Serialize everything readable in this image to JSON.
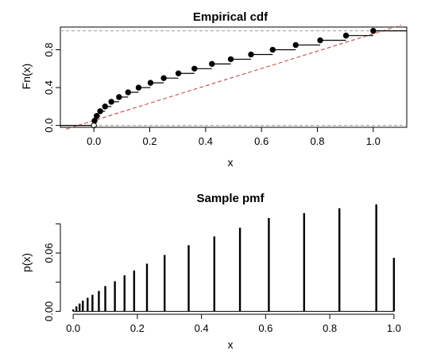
{
  "chart_data": [
    {
      "type": "line",
      "subtype": "step-ecdf",
      "title": "Empirical cdf",
      "xlabel": "x",
      "ylabel": "Fn(x)",
      "xlim": [
        -0.12,
        1.12
      ],
      "ylim": [
        -0.02,
        1.04
      ],
      "x_ticks": [
        "0.0",
        "0.2",
        "0.4",
        "0.6",
        "0.8",
        "1.0"
      ],
      "y_ticks": [
        "0.0",
        "0.4",
        "0.8"
      ],
      "x_tick_values": [
        0,
        0.2,
        0.4,
        0.6,
        0.8,
        1.0
      ],
      "y_tick_values": [
        0,
        0.4,
        0.8
      ],
      "reference_lines": [
        0,
        1
      ],
      "diagonal_reference": {
        "from": [
          -0.1,
          -0.04
        ],
        "to": [
          1.1,
          1.06
        ],
        "color": "#c0504d",
        "style": "dashed"
      },
      "series": [
        {
          "x": [
            0.0,
            0.0025,
            0.01,
            0.0225,
            0.04,
            0.0625,
            0.09,
            0.1225,
            0.16,
            0.2025,
            0.25,
            0.3025,
            0.36,
            0.4225,
            0.49,
            0.5625,
            0.64,
            0.7225,
            0.81,
            0.9025,
            1.0
          ],
          "y": [
            0.0,
            0.05,
            0.1,
            0.15,
            0.2,
            0.25,
            0.3,
            0.35,
            0.4,
            0.45,
            0.5,
            0.55,
            0.6,
            0.65,
            0.7,
            0.75,
            0.8,
            0.85,
            0.9,
            0.95,
            1.0
          ]
        }
      ],
      "grid": false
    },
    {
      "type": "bar",
      "subtype": "spike",
      "title": "Sample pmf",
      "xlabel": "x",
      "ylabel": "p(x)",
      "xlim": [
        -0.04,
        1.04
      ],
      "ylim": [
        -0.003,
        0.105
      ],
      "x_ticks": [
        "0.0",
        "0.2",
        "0.4",
        "0.6",
        "0.8",
        "1.0"
      ],
      "y_ticks": [
        "0.00",
        "0.06"
      ],
      "x_tick_values": [
        0,
        0.2,
        0.4,
        0.6,
        0.8,
        1.0
      ],
      "y_tick_values": [
        0,
        0.03,
        0.06,
        0.09
      ],
      "series": [
        {
          "x": [
            0.0,
            0.01,
            0.02,
            0.03,
            0.045,
            0.06,
            0.08,
            0.1,
            0.13,
            0.16,
            0.19,
            0.23,
            0.285,
            0.36,
            0.44,
            0.52,
            0.61,
            0.72,
            0.83,
            0.945,
            1.0
          ],
          "y": [
            0.002,
            0.005,
            0.008,
            0.011,
            0.014,
            0.017,
            0.021,
            0.026,
            0.031,
            0.037,
            0.042,
            0.049,
            0.058,
            0.068,
            0.077,
            0.086,
            0.096,
            0.101,
            0.106,
            0.11,
            0.055
          ]
        }
      ],
      "grid": false
    }
  ]
}
